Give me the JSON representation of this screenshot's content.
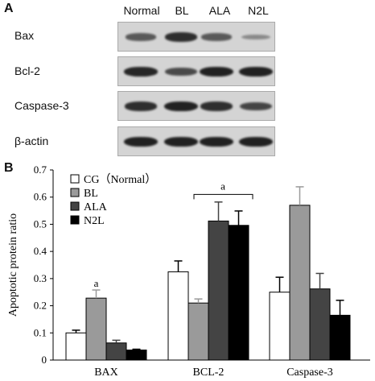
{
  "panel_a": {
    "letter": "A",
    "lanes": [
      "Normal",
      "BL",
      "ALA",
      "N2L"
    ],
    "rows": [
      {
        "label": "Bax",
        "intensities": [
          0.55,
          0.85,
          0.55,
          0.2
        ]
      },
      {
        "label": "Bcl-2",
        "intensities": [
          0.9,
          0.65,
          0.95,
          0.95
        ]
      },
      {
        "label": "Caspase-3",
        "intensities": [
          0.85,
          0.95,
          0.85,
          0.7
        ]
      },
      {
        "label": "β-actin",
        "intensities": [
          0.95,
          0.95,
          0.95,
          0.95
        ]
      }
    ]
  },
  "panel_b": {
    "letter": "B",
    "chart_data": {
      "type": "bar",
      "categories": [
        "BAX",
        "BCL-2",
        "Caspase-3"
      ],
      "series": [
        {
          "name": "CG（Normal）",
          "values": [
            0.1,
            0.325,
            0.25
          ],
          "errors": [
            0.01,
            0.04,
            0.055
          ],
          "color": "#ffffff"
        },
        {
          "name": "BL",
          "values": [
            0.228,
            0.21,
            0.57
          ],
          "errors": [
            0.03,
            0.015,
            0.068
          ],
          "color": "#9a9a9a"
        },
        {
          "name": "ALA",
          "values": [
            0.063,
            0.512,
            0.262
          ],
          "errors": [
            0.01,
            0.07,
            0.057
          ],
          "color": "#444444"
        },
        {
          "name": "N2L",
          "values": [
            0.037,
            0.496,
            0.165
          ],
          "errors": [
            0.003,
            0.053,
            0.055
          ],
          "color": "#000000"
        }
      ],
      "ylabel": "Apoptotic protein ratio",
      "xlabel": "",
      "ylim": [
        0,
        0.7
      ],
      "yticks": [
        "0",
        "0.1",
        "0.2",
        "0.3",
        "0.4",
        "0.5",
        "0.6",
        "0.7"
      ],
      "annotations": [
        "a",
        "a"
      ],
      "legend_position": "top-left"
    }
  }
}
